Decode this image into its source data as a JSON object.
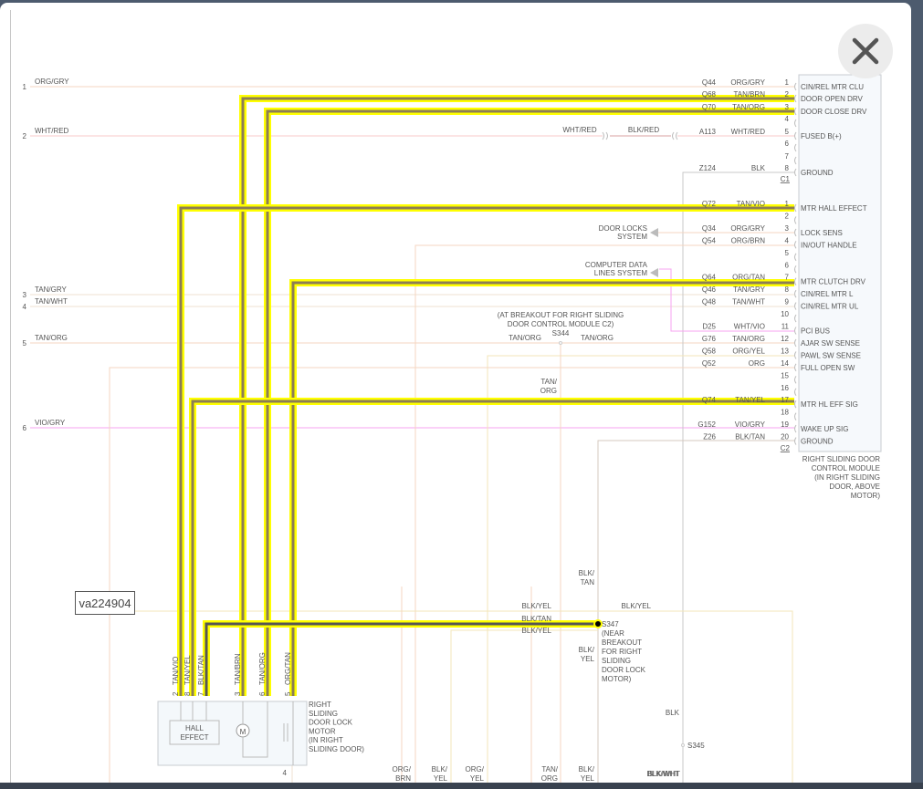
{
  "figure_id": "va224904",
  "close_icon": "close-x-icon",
  "colors": {
    "highlight": "#ffff00",
    "highlight_core": "#8c7d55",
    "highlight_core_dark": "#555555"
  },
  "left_wires": [
    {
      "num": "1",
      "color": "ORG/GRY"
    },
    {
      "num": "2",
      "color": "WHT/RED"
    },
    {
      "num": "3",
      "color": "TAN/GRY"
    },
    {
      "num": "4",
      "color": "TAN/WHT"
    },
    {
      "num": "5",
      "color": "TAN/ORG"
    },
    {
      "num": "6",
      "color": "VIO/GRY"
    }
  ],
  "c1": {
    "label": "C1",
    "pins": [
      {
        "pin": "1",
        "circuit": "Q44",
        "wire": "ORG/GRY",
        "function": "CIN/REL MTR CLU"
      },
      {
        "pin": "2",
        "circuit": "Q68",
        "wire": "TAN/BRN",
        "function": "DOOR OPEN DRV"
      },
      {
        "pin": "3",
        "circuit": "Q70",
        "wire": "TAN/ORG",
        "function": "DOOR CLOSE DRV"
      },
      {
        "pin": "4",
        "circuit": "",
        "wire": "",
        "function": ""
      },
      {
        "pin": "5",
        "circuit": "A113",
        "wire": "WHT/RED",
        "function": "FUSED B(+)"
      },
      {
        "pin": "6",
        "circuit": "",
        "wire": "",
        "function": ""
      },
      {
        "pin": "7",
        "circuit": "",
        "wire": "",
        "function": ""
      },
      {
        "pin": "8",
        "circuit": "Z124",
        "wire": "BLK",
        "function": "GROUND"
      }
    ]
  },
  "c2": {
    "label": "C2",
    "pins": [
      {
        "pin": "1",
        "circuit": "Q72",
        "wire": "TAN/VIO",
        "function": "MTR HALL EFFECT"
      },
      {
        "pin": "2",
        "circuit": "",
        "wire": "",
        "function": ""
      },
      {
        "pin": "3",
        "circuit": "Q34",
        "wire": "ORG/GRY",
        "function": "LOCK SENS"
      },
      {
        "pin": "4",
        "circuit": "Q54",
        "wire": "ORG/BRN",
        "function": "IN/OUT HANDLE"
      },
      {
        "pin": "5",
        "circuit": "",
        "wire": "",
        "function": ""
      },
      {
        "pin": "6",
        "circuit": "",
        "wire": "",
        "function": ""
      },
      {
        "pin": "7",
        "circuit": "Q64",
        "wire": "ORG/TAN",
        "function": "MTR CLUTCH DRV"
      },
      {
        "pin": "8",
        "circuit": "Q46",
        "wire": "TAN/GRY",
        "function": "CIN/REL MTR L"
      },
      {
        "pin": "9",
        "circuit": "Q48",
        "wire": "TAN/WHT",
        "function": "CIN/REL MTR UL"
      },
      {
        "pin": "10",
        "circuit": "",
        "wire": "",
        "function": ""
      },
      {
        "pin": "11",
        "circuit": "D25",
        "wire": "WHT/VIO",
        "function": "PCI BUS"
      },
      {
        "pin": "12",
        "circuit": "G76",
        "wire": "TAN/ORG",
        "function": "AJAR SW SENSE"
      },
      {
        "pin": "13",
        "circuit": "Q58",
        "wire": "ORG/YEL",
        "function": "PAWL SW SENSE"
      },
      {
        "pin": "14",
        "circuit": "Q52",
        "wire": "ORG",
        "function": "FULL OPEN SW"
      },
      {
        "pin": "15",
        "circuit": "",
        "wire": "",
        "function": ""
      },
      {
        "pin": "16",
        "circuit": "",
        "wire": "",
        "function": ""
      },
      {
        "pin": "17",
        "circuit": "Q74",
        "wire": "TAN/YEL",
        "function": "MTR HL EFF SIG"
      },
      {
        "pin": "18",
        "circuit": "",
        "wire": "",
        "function": ""
      },
      {
        "pin": "19",
        "circuit": "G152",
        "wire": "VIO/GRY",
        "function": "WAKE UP SIG"
      },
      {
        "pin": "20",
        "circuit": "Z26",
        "wire": "BLK/TAN",
        "function": "GROUND"
      }
    ]
  },
  "module_label": [
    "RIGHT SLIDING DOOR",
    "CONTROL MODULE",
    "(IN RIGHT SLIDING",
    "DOOR, ABOVE",
    "MOTOR)"
  ],
  "inline_connector": {
    "left_wire": "WHT/RED",
    "right_wire": "BLK/RED"
  },
  "door_locks_label": [
    "DOOR LOCKS",
    "SYSTEM"
  ],
  "computer_data_label": [
    "COMPUTER DATA",
    "LINES SYSTEM"
  ],
  "s344": {
    "id": "S344",
    "note": [
      "(AT BREAKOUT FOR RIGHT SLIDING",
      "DOOR CONTROL MODULE C2)"
    ],
    "left_wire": "TAN/ORG",
    "right_wire": "TAN/ORG",
    "down_wire": [
      "TAN/",
      "ORG"
    ]
  },
  "s347": {
    "id": "S347",
    "note": [
      "(NEAR",
      "BREAKOUT",
      "FOR RIGHT",
      "SLIDING",
      "DOOR LOCK",
      "MOTOR)"
    ],
    "up_wire": [
      "BLK/",
      "TAN"
    ],
    "down_wire": [
      "BLK/",
      "YEL"
    ],
    "wire_top_left": "BLK/YEL",
    "wire_top_right": "BLK/YEL",
    "wire_mid": "BLK/TAN",
    "wire_low": "BLK/YEL"
  },
  "s345": {
    "id": "S345",
    "up_wire": "BLK",
    "down_wire": "BLK/WHT"
  },
  "motor": {
    "label": [
      "RIGHT",
      "SLIDING",
      "DOOR LOCK",
      "MOTOR",
      "(IN RIGHT",
      "SLIDING DOOR)"
    ],
    "hall_label": [
      "HALL",
      "EFFECT"
    ],
    "motor_symbol": "M",
    "pins": [
      {
        "pin": "2",
        "wire": "TAN/VIO"
      },
      {
        "pin": "8",
        "wire": "TAN/YEL"
      },
      {
        "pin": "7",
        "wire": "BLK/TAN"
      },
      {
        "pin": "3",
        "wire": "TAN/BRN"
      },
      {
        "pin": "6",
        "wire": "TAN/ORG"
      },
      {
        "pin": "5",
        "wire": "ORG/TAN"
      }
    ],
    "ground_pin": "4",
    "ground_wire": "BLK/TAN"
  },
  "bottom_wires": [
    [
      "ORG/",
      "BRN"
    ],
    [
      "BLK/",
      "YEL"
    ],
    [
      "ORG/",
      "YEL"
    ],
    [
      "TAN/",
      "ORG"
    ],
    [
      "BLK/",
      "YEL"
    ],
    [
      "BLK/WHT"
    ]
  ]
}
